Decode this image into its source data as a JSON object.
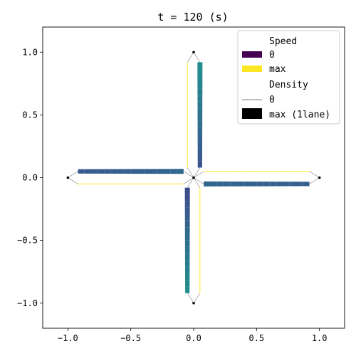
{
  "chart_data": {
    "type": "line",
    "title": "t =      120 (s)",
    "xlabel": "",
    "ylabel": "",
    "xlim": [
      -1.2,
      1.2
    ],
    "ylim": [
      -1.2,
      1.2
    ],
    "xticks": [
      -1.0,
      -0.5,
      0.0,
      0.5,
      1.0
    ],
    "xtick_labels": [
      "−1.0",
      "−0.5",
      "0.0",
      "0.5",
      "1.0"
    ],
    "yticks": [
      1.0,
      0.5,
      0.0,
      -0.5,
      -1.0
    ],
    "ytick_labels": [
      "1.0",
      "0.5",
      "0.0",
      "−0.5",
      "−1.0"
    ],
    "grid": false,
    "legend": {
      "placement": "top-right",
      "speed_title": "Speed",
      "speed_min_label": "0",
      "speed_max_label": "max",
      "speed_min_color": "#440154",
      "speed_max_color": "#fde725",
      "density_title": "Density",
      "density_min_label": "0",
      "density_max_label": "max (1lane)",
      "density_color": "#000000"
    },
    "nodes": [
      {
        "x": 0.0,
        "y": 0.0
      },
      {
        "x": 0.0,
        "y": 1.0
      },
      {
        "x": 1.0,
        "y": 0.0
      },
      {
        "x": 0.0,
        "y": -1.0
      },
      {
        "x": -1.0,
        "y": 0.0
      }
    ],
    "links": [
      {
        "from": [
          -1.0,
          0.0
        ],
        "to": [
          0.0,
          0.0
        ],
        "offset": [
          0.0,
          0.05
        ],
        "span": [
          0.08,
          0.92
        ],
        "density": [
          0.035,
          0.04
        ],
        "speed": [
          0.28,
          0.33
        ]
      },
      {
        "from": [
          0.0,
          0.0
        ],
        "to": [
          -1.0,
          0.0
        ],
        "offset": [
          0.0,
          -0.05
        ],
        "span": [
          0.08,
          0.92
        ],
        "density": [
          0.004,
          0.004
        ],
        "speed": [
          1.0,
          1.0
        ]
      },
      {
        "from": [
          1.0,
          0.0
        ],
        "to": [
          0.0,
          0.0
        ],
        "offset": [
          0.0,
          -0.05
        ],
        "span": [
          0.08,
          0.92
        ],
        "density": [
          0.035,
          0.04
        ],
        "speed": [
          0.3,
          0.33
        ]
      },
      {
        "from": [
          0.0,
          0.0
        ],
        "to": [
          1.0,
          0.0
        ],
        "offset": [
          0.0,
          0.05
        ],
        "span": [
          0.08,
          0.92
        ],
        "density": [
          0.004,
          0.004
        ],
        "speed": [
          1.0,
          1.0
        ]
      },
      {
        "from": [
          0.0,
          1.0
        ],
        "to": [
          0.0,
          0.0
        ],
        "offset": [
          0.05,
          0.0
        ],
        "span": [
          0.08,
          0.92
        ],
        "density": [
          0.04,
          0.035
        ],
        "speed": [
          0.5,
          0.25
        ]
      },
      {
        "from": [
          0.0,
          0.0
        ],
        "to": [
          0.0,
          1.0
        ],
        "offset": [
          -0.05,
          0.0
        ],
        "span": [
          0.08,
          0.92
        ],
        "density": [
          0.004,
          0.004
        ],
        "speed": [
          1.0,
          1.0
        ]
      },
      {
        "from": [
          0.0,
          -1.0
        ],
        "to": [
          0.0,
          0.0
        ],
        "offset": [
          -0.05,
          0.0
        ],
        "span": [
          0.08,
          0.92
        ],
        "density": [
          0.035,
          0.04
        ],
        "speed": [
          0.5,
          0.22
        ]
      },
      {
        "from": [
          0.0,
          0.0
        ],
        "to": [
          0.0,
          -1.0
        ],
        "offset": [
          0.05,
          0.0
        ],
        "span": [
          0.08,
          0.92
        ],
        "density": [
          0.004,
          0.004
        ],
        "speed": [
          1.0,
          1.0
        ]
      }
    ]
  }
}
